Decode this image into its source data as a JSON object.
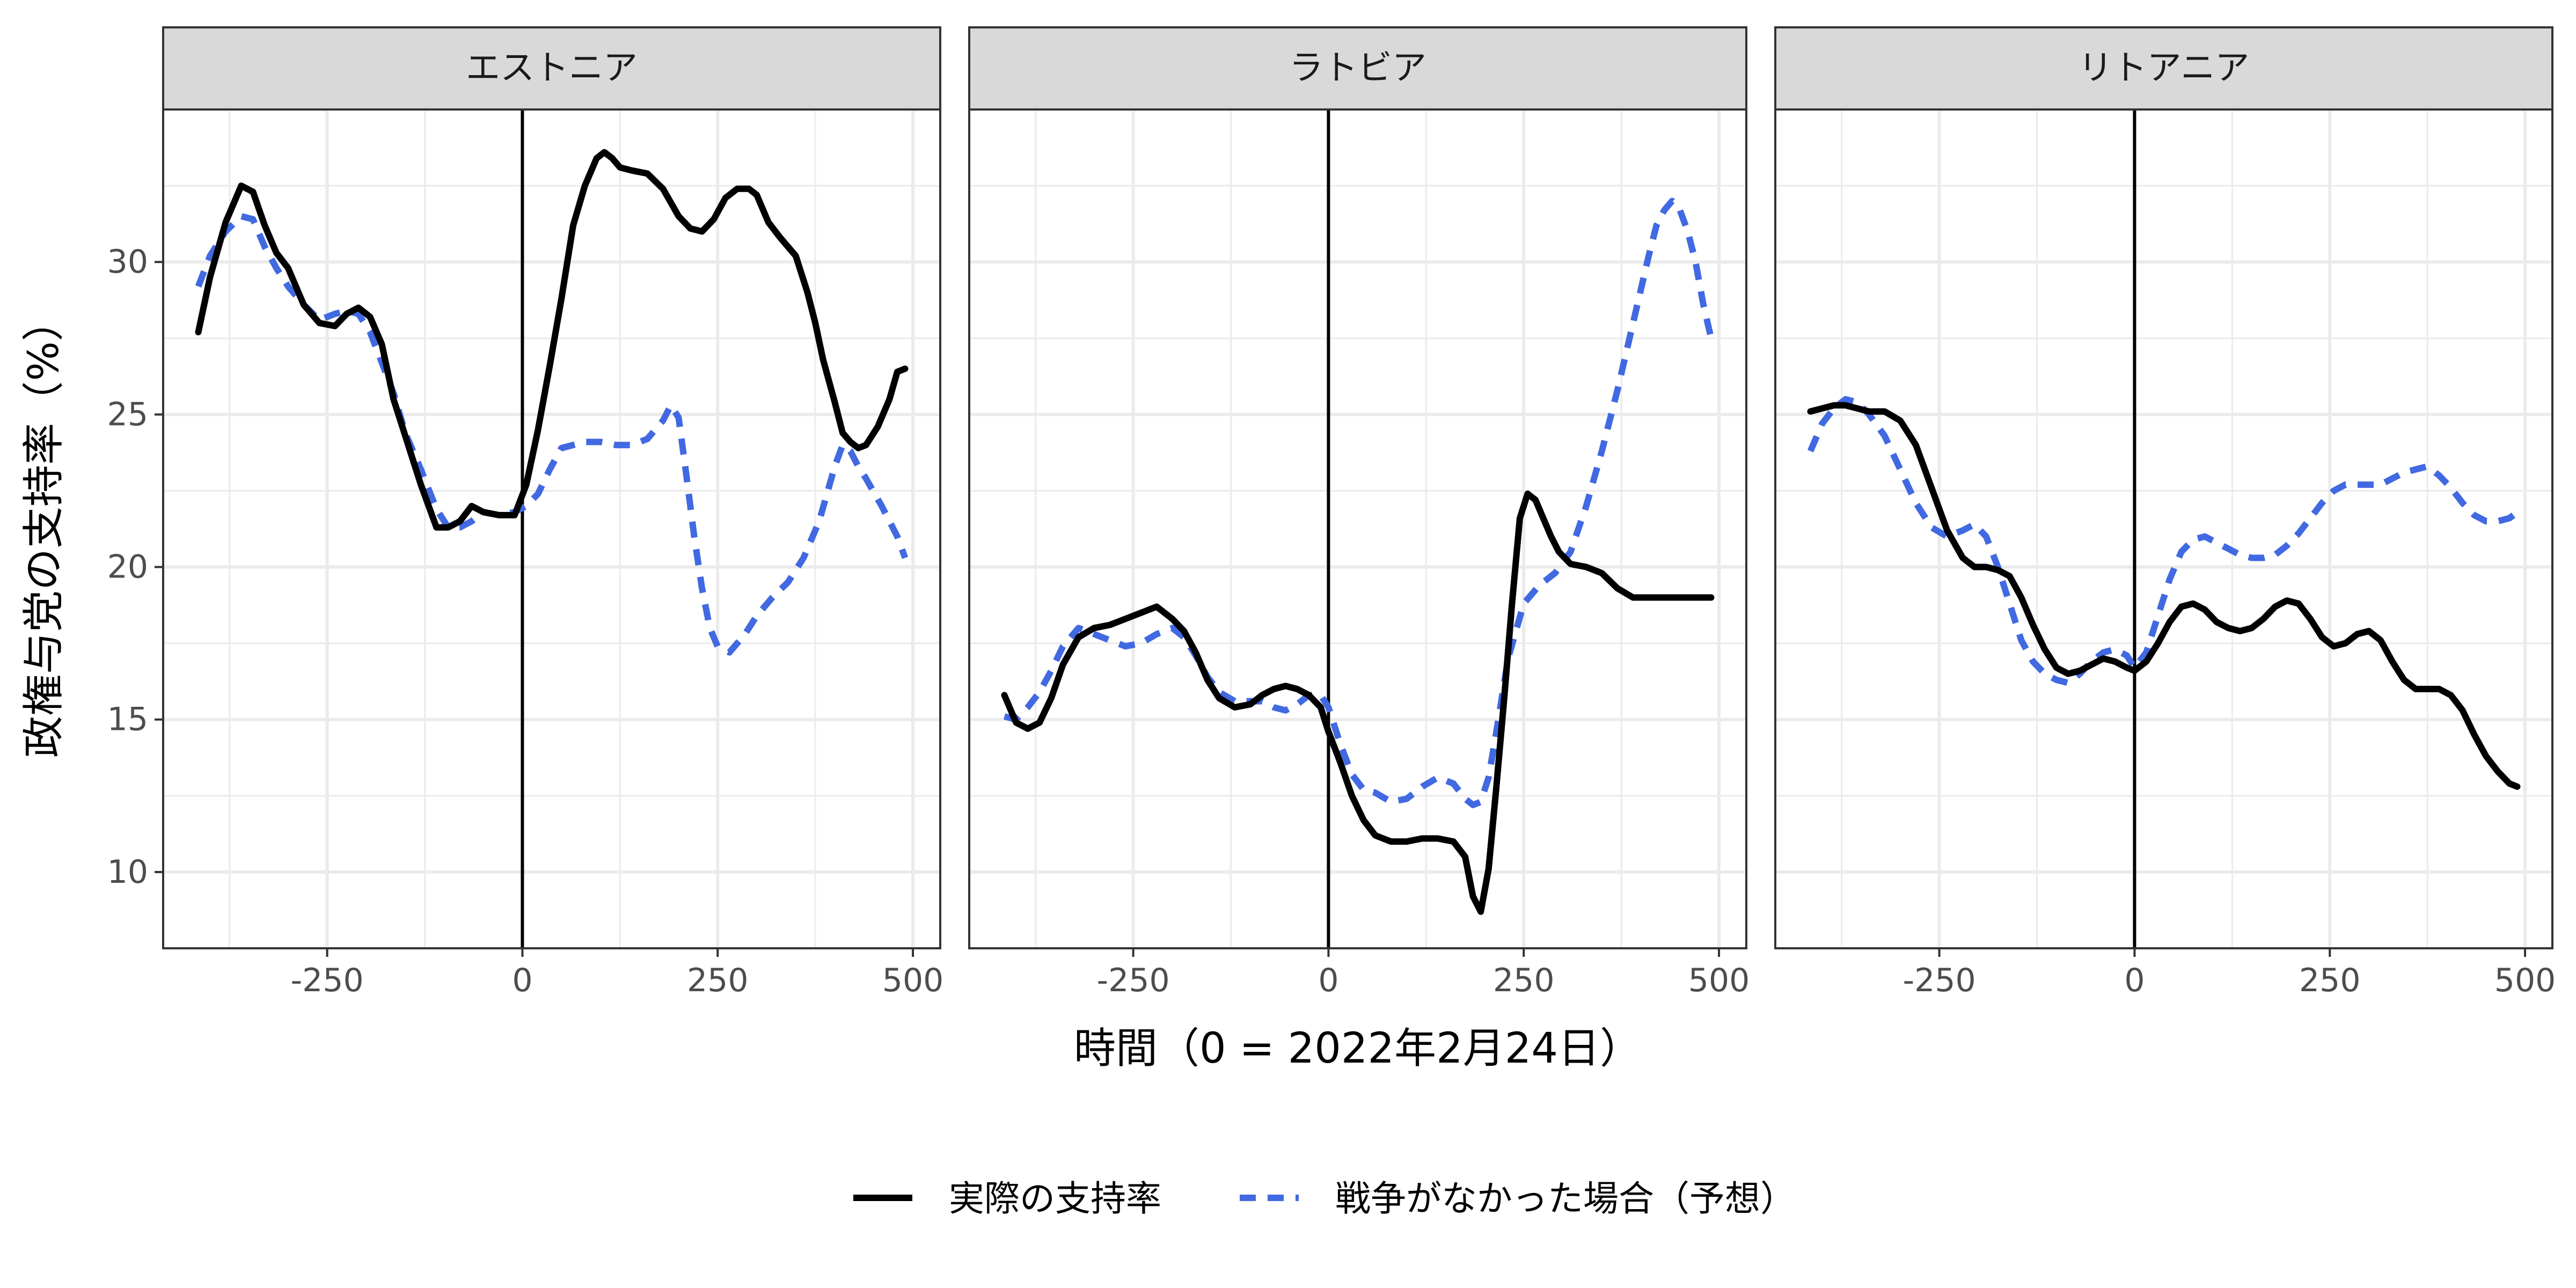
{
  "chart_data": {
    "type": "line",
    "layout": "facets",
    "xlabel": "時間（0 = 2022年2月24日）",
    "ylabel": "政権与党の支持率（%）",
    "x_ticks": [
      -250,
      0,
      250,
      500
    ],
    "y_ticks": [
      10,
      15,
      20,
      25,
      30
    ],
    "xlim": [
      -460,
      535
    ],
    "ylim": [
      7.5,
      35.0
    ],
    "vline_x": 0,
    "grid": true,
    "legend_position": "bottom",
    "legend": [
      {
        "name": "実際の支持率",
        "color": "#000000",
        "dash": "solid"
      },
      {
        "name": "戦争がなかった場合（予想）",
        "color": "#4169E1",
        "dash": "dashed"
      }
    ],
    "facets": [
      {
        "title": "エストニア",
        "series": [
          {
            "name": "実際の支持率",
            "x": [
              -415,
              -400,
              -380,
              -360,
              -345,
              -330,
              -315,
              -300,
              -280,
              -260,
              -240,
              -225,
              -210,
              -195,
              -180,
              -165,
              -150,
              -130,
              -110,
              -95,
              -80,
              -65,
              -50,
              -30,
              -10,
              5,
              20,
              35,
              50,
              65,
              80,
              95,
              105,
              115,
              125,
              140,
              160,
              180,
              200,
              215,
              230,
              245,
              260,
              275,
              290,
              300,
              315,
              330,
              350,
              365,
              375,
              385,
              400,
              410,
              420,
              430,
              440,
              455,
              470,
              480,
              490
            ],
            "y": [
              27.7,
              29.5,
              31.3,
              32.5,
              32.3,
              31.2,
              30.3,
              29.8,
              28.6,
              28.0,
              27.9,
              28.3,
              28.5,
              28.2,
              27.3,
              25.5,
              24.3,
              22.7,
              21.3,
              21.3,
              21.5,
              22.0,
              21.8,
              21.7,
              21.7,
              22.7,
              24.5,
              26.6,
              28.8,
              31.2,
              32.5,
              33.4,
              33.6,
              33.4,
              33.1,
              33.0,
              32.9,
              32.4,
              31.5,
              31.1,
              31.0,
              31.4,
              32.1,
              32.4,
              32.4,
              32.2,
              31.3,
              30.8,
              30.2,
              29.0,
              28.0,
              26.8,
              25.4,
              24.4,
              24.1,
              23.9,
              24.0,
              24.6,
              25.5,
              26.4,
              26.5
            ]
          },
          {
            "name": "戦争がなかった場合（予想）",
            "x": [
              -415,
              -400,
              -380,
              -360,
              -345,
              -330,
              -315,
              -300,
              -280,
              -260,
              -240,
              -225,
              -210,
              -195,
              -180,
              -165,
              -150,
              -130,
              -110,
              -95,
              -80,
              -65,
              -50,
              -30,
              -10,
              5,
              20,
              35,
              50,
              65,
              80,
              100,
              120,
              140,
              160,
              180,
              190,
              200,
              210,
              220,
              230,
              240,
              250,
              265,
              285,
              300,
              320,
              340,
              360,
              380,
              400,
              410,
              420,
              430,
              440,
              460,
              480,
              490
            ],
            "y": [
              29.2,
              30.2,
              31.0,
              31.5,
              31.4,
              30.5,
              29.8,
              29.2,
              28.6,
              28.1,
              28.3,
              28.4,
              28.3,
              27.7,
              26.7,
              25.7,
              24.4,
              23.2,
              21.9,
              21.3,
              21.3,
              21.5,
              21.8,
              21.7,
              21.8,
              22.0,
              22.4,
              23.2,
              23.9,
              24.0,
              24.1,
              24.1,
              24.0,
              24.0,
              24.2,
              24.8,
              25.3,
              24.9,
              23.0,
              21.0,
              19.3,
              18.0,
              17.4,
              17.2,
              17.8,
              18.4,
              19.0,
              19.5,
              20.3,
              21.5,
              23.3,
              24.0,
              23.8,
              23.3,
              22.9,
              22.0,
              21.0,
              20.3
            ]
          }
        ]
      },
      {
        "title": "ラトビア",
        "series": [
          {
            "name": "実際の支持率",
            "x": [
              -415,
              -400,
              -385,
              -370,
              -355,
              -340,
              -320,
              -300,
              -280,
              -260,
              -240,
              -220,
              -200,
              -185,
              -170,
              -155,
              -140,
              -120,
              -100,
              -85,
              -70,
              -55,
              -40,
              -25,
              -10,
              0,
              15,
              30,
              45,
              60,
              80,
              100,
              120,
              140,
              160,
              175,
              185,
              195,
              205,
              215,
              225,
              235,
              245,
              255,
              265,
              275,
              285,
              295,
              310,
              330,
              350,
              370,
              390,
              420,
              450,
              480,
              490
            ],
            "y": [
              15.8,
              14.9,
              14.7,
              14.9,
              15.7,
              16.8,
              17.7,
              18.0,
              18.1,
              18.3,
              18.5,
              18.7,
              18.3,
              17.9,
              17.2,
              16.3,
              15.7,
              15.4,
              15.5,
              15.8,
              16.0,
              16.1,
              16.0,
              15.8,
              15.4,
              14.6,
              13.6,
              12.5,
              11.7,
              11.2,
              11.0,
              11.0,
              11.1,
              11.1,
              11.0,
              10.5,
              9.2,
              8.7,
              10.1,
              12.8,
              15.7,
              18.8,
              21.6,
              22.4,
              22.2,
              21.6,
              21.0,
              20.5,
              20.1,
              20.0,
              19.8,
              19.3,
              19.0,
              19.0,
              19.0,
              19.0,
              19.0
            ]
          },
          {
            "name": "戦争がなかった場合（予想）",
            "x": [
              -415,
              -400,
              -385,
              -370,
              -355,
              -340,
              -320,
              -300,
              -280,
              -260,
              -240,
              -220,
              -200,
              -185,
              -170,
              -155,
              -140,
              -120,
              -100,
              -85,
              -70,
              -55,
              -40,
              -25,
              -10,
              0,
              15,
              30,
              45,
              60,
              80,
              100,
              120,
              140,
              160,
              175,
              185,
              195,
              205,
              215,
              230,
              250,
              270,
              290,
              310,
              330,
              350,
              370,
              390,
              410,
              420,
              430,
              440,
              450,
              460,
              470,
              480,
              490
            ],
            "y": [
              15.1,
              15.0,
              15.4,
              15.9,
              16.6,
              17.4,
              18.0,
              17.8,
              17.6,
              17.4,
              17.5,
              17.8,
              18.0,
              17.7,
              17.1,
              16.4,
              15.9,
              15.6,
              15.6,
              15.6,
              15.4,
              15.3,
              15.5,
              15.8,
              15.8,
              15.4,
              14.2,
              13.2,
              12.7,
              12.6,
              12.3,
              12.4,
              12.8,
              13.1,
              12.9,
              12.4,
              12.2,
              12.3,
              13.1,
              14.6,
              17.0,
              18.8,
              19.4,
              19.8,
              20.5,
              22.0,
              23.8,
              25.8,
              28.0,
              30.2,
              31.2,
              31.7,
              32.0,
              31.7,
              31.0,
              30.0,
              28.6,
              27.5
            ]
          }
        ]
      },
      {
        "title": "リトアニア",
        "series": [
          {
            "name": "実際の支持率",
            "x": [
              -415,
              -400,
              -385,
              -370,
              -355,
              -340,
              -320,
              -300,
              -280,
              -260,
              -240,
              -220,
              -205,
              -190,
              -175,
              -160,
              -145,
              -130,
              -115,
              -100,
              -85,
              -70,
              -55,
              -40,
              -25,
              -10,
              0,
              15,
              30,
              45,
              60,
              75,
              90,
              105,
              120,
              135,
              150,
              165,
              180,
              195,
              210,
              225,
              240,
              255,
              270,
              285,
              300,
              315,
              330,
              345,
              360,
              375,
              390,
              405,
              420,
              435,
              450,
              465,
              480,
              490
            ],
            "y": [
              25.1,
              25.2,
              25.3,
              25.3,
              25.2,
              25.1,
              25.1,
              24.8,
              24.0,
              22.6,
              21.2,
              20.3,
              20.0,
              20.0,
              19.9,
              19.7,
              19.0,
              18.1,
              17.3,
              16.7,
              16.5,
              16.6,
              16.8,
              17.0,
              16.9,
              16.7,
              16.6,
              16.9,
              17.5,
              18.2,
              18.7,
              18.8,
              18.6,
              18.2,
              18.0,
              17.9,
              18.0,
              18.3,
              18.7,
              18.9,
              18.8,
              18.3,
              17.7,
              17.4,
              17.5,
              17.8,
              17.9,
              17.6,
              16.9,
              16.3,
              16.0,
              16.0,
              16.0,
              15.8,
              15.3,
              14.5,
              13.8,
              13.3,
              12.9,
              12.8
            ]
          },
          {
            "name": "戦争がなかった場合（予想）",
            "x": [
              -415,
              -400,
              -385,
              -370,
              -355,
              -340,
              -320,
              -300,
              -280,
              -260,
              -240,
              -220,
              -205,
              -190,
              -175,
              -160,
              -145,
              -130,
              -115,
              -100,
              -85,
              -70,
              -55,
              -40,
              -25,
              -10,
              0,
              15,
              30,
              45,
              60,
              75,
              90,
              105,
              120,
              135,
              150,
              165,
              180,
              195,
              210,
              225,
              240,
              255,
              270,
              285,
              300,
              315,
              330,
              345,
              360,
              375,
              390,
              405,
              420,
              435,
              450,
              465,
              480,
              490
            ],
            "y": [
              23.8,
              24.7,
              25.2,
              25.5,
              25.4,
              25.0,
              24.3,
              23.2,
              22.1,
              21.3,
              21.0,
              21.2,
              21.4,
              21.0,
              20.0,
              18.8,
              17.6,
              16.9,
              16.5,
              16.3,
              16.2,
              16.5,
              16.9,
              17.2,
              17.3,
              17.1,
              16.7,
              17.2,
              18.4,
              19.6,
              20.5,
              20.9,
              21.0,
              20.8,
              20.6,
              20.4,
              20.3,
              20.3,
              20.4,
              20.7,
              21.1,
              21.6,
              22.1,
              22.5,
              22.7,
              22.7,
              22.7,
              22.7,
              22.9,
              23.1,
              23.2,
              23.3,
              23.0,
              22.6,
              22.1,
              21.7,
              21.5,
              21.5,
              21.6,
              21.8
            ]
          }
        ]
      }
    ]
  }
}
